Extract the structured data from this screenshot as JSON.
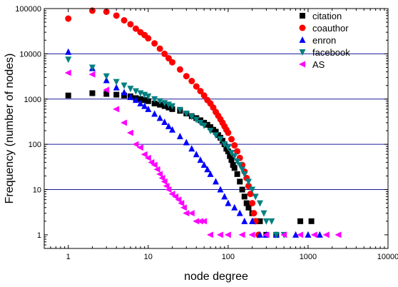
{
  "chart_data": {
    "type": "scatter",
    "xlabel": "node degree",
    "ylabel": "Frequency (number of nodes)",
    "x_scale": "log",
    "y_scale": "log",
    "xlim": [
      0.5,
      10000
    ],
    "ylim": [
      0.5,
      100000
    ],
    "x_ticks": [
      1,
      10,
      100,
      1000,
      10000
    ],
    "x_tick_labels": [
      "1",
      "10",
      "100",
      "1000",
      "10000"
    ],
    "y_ticks": [
      1,
      10,
      100,
      1000,
      10000,
      100000
    ],
    "y_tick_labels": [
      "1",
      "10",
      "100",
      "1000",
      "10000",
      "100000"
    ],
    "grid": "horizontal major lines",
    "legend_position": "top-right",
    "series": [
      {
        "name": "citation",
        "marker": "square",
        "color": "#000000",
        "points": [
          [
            1,
            1200
          ],
          [
            2,
            1350
          ],
          [
            3,
            1300
          ],
          [
            4,
            1250
          ],
          [
            5,
            1200
          ],
          [
            6,
            1150
          ],
          [
            7,
            1050
          ],
          [
            8,
            1000
          ],
          [
            9,
            950
          ],
          [
            10,
            900
          ],
          [
            12,
            800
          ],
          [
            14,
            750
          ],
          [
            16,
            700
          ],
          [
            18,
            650
          ],
          [
            20,
            600
          ],
          [
            25,
            550
          ],
          [
            30,
            480
          ],
          [
            35,
            420
          ],
          [
            40,
            380
          ],
          [
            45,
            340
          ],
          [
            50,
            300
          ],
          [
            55,
            270
          ],
          [
            60,
            240
          ],
          [
            65,
            210
          ],
          [
            70,
            190
          ],
          [
            75,
            160
          ],
          [
            80,
            140
          ],
          [
            85,
            120
          ],
          [
            90,
            100
          ],
          [
            95,
            80
          ],
          [
            100,
            70
          ],
          [
            105,
            55
          ],
          [
            110,
            45
          ],
          [
            115,
            35
          ],
          [
            120,
            30
          ],
          [
            130,
            22
          ],
          [
            140,
            15
          ],
          [
            150,
            10
          ],
          [
            160,
            7
          ],
          [
            170,
            5
          ],
          [
            180,
            4
          ],
          [
            200,
            3
          ],
          [
            220,
            2
          ],
          [
            250,
            2
          ],
          [
            300,
            1
          ],
          [
            400,
            1
          ],
          [
            800,
            2
          ],
          [
            1100,
            2
          ]
        ]
      },
      {
        "name": "coauthor",
        "marker": "circle",
        "color": "#ff0000",
        "points": [
          [
            1,
            60000
          ],
          [
            2,
            90000
          ],
          [
            3,
            85000
          ],
          [
            4,
            70000
          ],
          [
            5,
            55000
          ],
          [
            6,
            45000
          ],
          [
            7,
            36000
          ],
          [
            8,
            30000
          ],
          [
            9,
            26000
          ],
          [
            10,
            22000
          ],
          [
            12,
            17000
          ],
          [
            14,
            13000
          ],
          [
            16,
            10000
          ],
          [
            18,
            8000
          ],
          [
            20,
            6500
          ],
          [
            25,
            4500
          ],
          [
            30,
            3200
          ],
          [
            35,
            2500
          ],
          [
            40,
            1900
          ],
          [
            45,
            1500
          ],
          [
            50,
            1200
          ],
          [
            55,
            950
          ],
          [
            60,
            800
          ],
          [
            65,
            650
          ],
          [
            70,
            520
          ],
          [
            75,
            430
          ],
          [
            80,
            360
          ],
          [
            85,
            300
          ],
          [
            90,
            250
          ],
          [
            95,
            210
          ],
          [
            100,
            180
          ],
          [
            110,
            130
          ],
          [
            120,
            95
          ],
          [
            130,
            70
          ],
          [
            140,
            50
          ],
          [
            150,
            35
          ],
          [
            160,
            25
          ],
          [
            170,
            18
          ],
          [
            180,
            12
          ],
          [
            190,
            8
          ],
          [
            200,
            5
          ],
          [
            210,
            3
          ],
          [
            220,
            2
          ],
          [
            240,
            1
          ]
        ]
      },
      {
        "name": "enron",
        "marker": "triangle-up",
        "color": "#0000ff",
        "points": [
          [
            1,
            11000
          ],
          [
            2,
            4800
          ],
          [
            3,
            2600
          ],
          [
            4,
            1800
          ],
          [
            5,
            1400
          ],
          [
            6,
            1100
          ],
          [
            7,
            950
          ],
          [
            8,
            800
          ],
          [
            9,
            700
          ],
          [
            10,
            600
          ],
          [
            12,
            470
          ],
          [
            14,
            380
          ],
          [
            16,
            310
          ],
          [
            18,
            250
          ],
          [
            20,
            210
          ],
          [
            25,
            150
          ],
          [
            30,
            110
          ],
          [
            35,
            80
          ],
          [
            40,
            60
          ],
          [
            45,
            45
          ],
          [
            50,
            35
          ],
          [
            55,
            28
          ],
          [
            60,
            22
          ],
          [
            70,
            15
          ],
          [
            80,
            10
          ],
          [
            90,
            7
          ],
          [
            100,
            5
          ],
          [
            120,
            4
          ],
          [
            140,
            3
          ],
          [
            160,
            2
          ],
          [
            200,
            2
          ],
          [
            250,
            1
          ],
          [
            300,
            1
          ],
          [
            400,
            1
          ],
          [
            700,
            1
          ],
          [
            1000,
            1
          ],
          [
            1400,
            1
          ]
        ]
      },
      {
        "name": "facebook",
        "marker": "triangle-down",
        "color": "#008080",
        "points": [
          [
            1,
            7500
          ],
          [
            2,
            5000
          ],
          [
            3,
            3200
          ],
          [
            4,
            2400
          ],
          [
            5,
            2000
          ],
          [
            6,
            1700
          ],
          [
            7,
            1500
          ],
          [
            8,
            1350
          ],
          [
            9,
            1250
          ],
          [
            10,
            1150
          ],
          [
            12,
            1000
          ],
          [
            14,
            900
          ],
          [
            16,
            820
          ],
          [
            18,
            760
          ],
          [
            20,
            700
          ],
          [
            25,
            580
          ],
          [
            30,
            480
          ],
          [
            35,
            410
          ],
          [
            40,
            350
          ],
          [
            45,
            300
          ],
          [
            50,
            260
          ],
          [
            60,
            200
          ],
          [
            70,
            160
          ],
          [
            80,
            130
          ],
          [
            90,
            100
          ],
          [
            100,
            85
          ],
          [
            110,
            65
          ],
          [
            120,
            55
          ],
          [
            130,
            42
          ],
          [
            140,
            35
          ],
          [
            150,
            28
          ],
          [
            160,
            22
          ],
          [
            180,
            15
          ],
          [
            200,
            10
          ],
          [
            220,
            7
          ],
          [
            250,
            5
          ],
          [
            280,
            3
          ],
          [
            300,
            2
          ],
          [
            350,
            2
          ],
          [
            400,
            1
          ],
          [
            500,
            1
          ]
        ]
      },
      {
        "name": "AS",
        "marker": "triangle-left",
        "color": "#ff00ff",
        "points": [
          [
            1,
            3800
          ],
          [
            2,
            3500
          ],
          [
            3,
            1600
          ],
          [
            4,
            600
          ],
          [
            5,
            300
          ],
          [
            6,
            180
          ],
          [
            7,
            100
          ],
          [
            8,
            85
          ],
          [
            9,
            60
          ],
          [
            10,
            50
          ],
          [
            11,
            40
          ],
          [
            12,
            35
          ],
          [
            13,
            28
          ],
          [
            14,
            22
          ],
          [
            15,
            18
          ],
          [
            16,
            15
          ],
          [
            17,
            12
          ],
          [
            18,
            10
          ],
          [
            20,
            8
          ],
          [
            22,
            7
          ],
          [
            24,
            6
          ],
          [
            26,
            5
          ],
          [
            28,
            4
          ],
          [
            30,
            3
          ],
          [
            35,
            3
          ],
          [
            40,
            2
          ],
          [
            45,
            2
          ],
          [
            50,
            2
          ],
          [
            60,
            1
          ],
          [
            80,
            1
          ],
          [
            100,
            1
          ],
          [
            150,
            1
          ],
          [
            200,
            1
          ],
          [
            300,
            1
          ],
          [
            500,
            1
          ],
          [
            800,
            1
          ],
          [
            1200,
            1
          ],
          [
            1700,
            1
          ],
          [
            2400,
            1
          ]
        ]
      }
    ]
  }
}
